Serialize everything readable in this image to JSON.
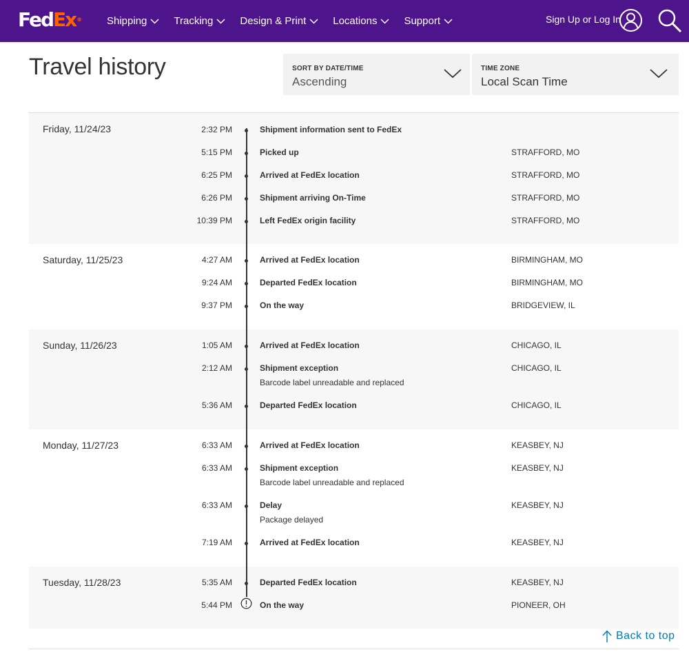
{
  "header": {
    "logo_part1": "Fed",
    "logo_part2": "Ex",
    "logo_reg": "®",
    "nav": [
      {
        "label": "Shipping"
      },
      {
        "label": "Tracking"
      },
      {
        "label": "Design & Print"
      },
      {
        "label": "Locations"
      },
      {
        "label": "Support"
      }
    ],
    "signin_label": "Sign Up or Log In",
    "bg_color": "#4d148c",
    "accent_color": "#ff6200"
  },
  "page": {
    "title": "Travel history",
    "sort": {
      "label": "SORT BY DATE/TIME",
      "value": "Ascending"
    },
    "timezone": {
      "label": "TIME ZONE",
      "value": "Local Scan Time"
    },
    "back_to_top": "Back to top"
  },
  "days": [
    {
      "date": "Friday, 11/24/23",
      "events": [
        {
          "time": "2:32 PM",
          "status": "Shipment information sent to FedEx",
          "location": ""
        },
        {
          "time": "5:15 PM",
          "status": "Picked up",
          "location": "STRAFFORD, MO"
        },
        {
          "time": "6:25 PM",
          "status": "Arrived at FedEx location",
          "location": "STRAFFORD, MO"
        },
        {
          "time": "6:26 PM",
          "status": "Shipment arriving On-Time",
          "location": "STRAFFORD, MO"
        },
        {
          "time": "10:39 PM",
          "status": "Left FedEx origin facility",
          "location": "STRAFFORD, MO"
        }
      ]
    },
    {
      "date": "Saturday, 11/25/23",
      "events": [
        {
          "time": "4:27 AM",
          "status": "Arrived at FedEx location",
          "location": "BIRMINGHAM, MO"
        },
        {
          "time": "9:24 AM",
          "status": "Departed FedEx location",
          "location": "BIRMINGHAM, MO"
        },
        {
          "time": "9:37 PM",
          "status": "On the way",
          "location": "BRIDGEVIEW, IL"
        }
      ]
    },
    {
      "date": "Sunday, 11/26/23",
      "events": [
        {
          "time": "1:05 AM",
          "status": "Arrived at FedEx location",
          "location": "CHICAGO, IL"
        },
        {
          "time": "2:12 AM",
          "status": "Shipment exception",
          "detail": "Barcode label unreadable and replaced",
          "location": "CHICAGO, IL"
        },
        {
          "time": "5:36 AM",
          "status": "Departed FedEx location",
          "location": "CHICAGO, IL"
        }
      ]
    },
    {
      "date": "Monday, 11/27/23",
      "events": [
        {
          "time": "6:33 AM",
          "status": "Arrived at FedEx location",
          "location": "KEASBEY, NJ"
        },
        {
          "time": "6:33 AM",
          "status": "Shipment exception",
          "detail": "Barcode label unreadable and replaced",
          "location": "KEASBEY, NJ"
        },
        {
          "time": "6:33 AM",
          "status": "Delay",
          "detail": "Package delayed",
          "location": "KEASBEY, NJ"
        },
        {
          "time": "7:19 AM",
          "status": "Arrived at FedEx location",
          "location": "KEASBEY, NJ"
        }
      ]
    },
    {
      "date": "Tuesday, 11/28/23",
      "events": [
        {
          "time": "5:35 AM",
          "status": "Departed FedEx location",
          "location": "KEASBEY, NJ"
        },
        {
          "time": "5:44 PM",
          "status": "On the way",
          "location": "PIONEER, OH",
          "icon": "exclamation-circle-icon"
        }
      ]
    }
  ]
}
